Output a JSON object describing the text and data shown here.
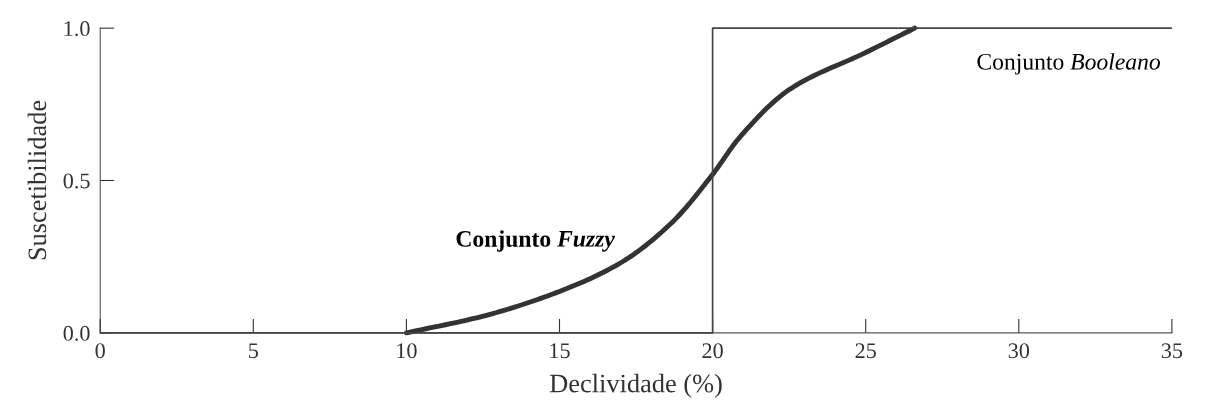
{
  "chart_data": {
    "type": "line",
    "xlabel": "Declividade (%)",
    "ylabel": "Suscetibilidade",
    "xlim": [
      0,
      35
    ],
    "ylim": [
      0,
      1
    ],
    "xticks": [
      0,
      5,
      10,
      15,
      20,
      25,
      30,
      35
    ],
    "yticks": [
      {
        "value": 0,
        "label": "0.0"
      },
      {
        "value": 0.5,
        "label": "0.5"
      },
      {
        "value": 1,
        "label": "1.0"
      }
    ],
    "grid": false,
    "legend": false,
    "marker": "none",
    "line_style": "solid",
    "series": [
      {
        "name": "Conjunto Fuzzy",
        "color": "#333333",
        "x": [
          10,
          12.55,
          15,
          17.0,
          18.65,
          20,
          20.87,
          22.53,
          25,
          26.6
        ],
        "values": [
          0,
          0.056,
          0.136,
          0.23,
          0.36,
          0.52,
          0.64,
          0.8,
          0.92,
          1.0
        ]
      },
      {
        "name": "Conjunto Booleano",
        "color": "#444444",
        "x": [
          0,
          20,
          20,
          35
        ],
        "values": [
          0,
          0,
          1,
          1
        ]
      }
    ]
  }
}
